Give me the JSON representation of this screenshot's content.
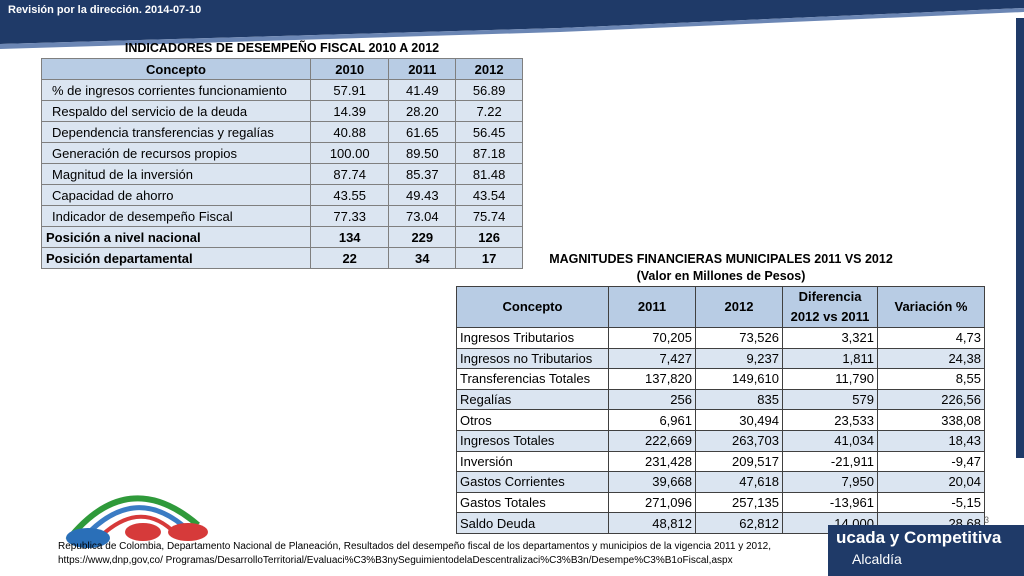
{
  "header": {
    "title": "Revisión por la dirección. 2014-07-10"
  },
  "table1": {
    "title": "INDICADORES DE DESEMPEÑO FISCAL 2010 A 2012",
    "headers": [
      "Concepto",
      "2010",
      "2011",
      "2012"
    ],
    "rows": [
      [
        "% de ingresos corrientes funcionamiento",
        "57.91",
        "41.49",
        "56.89"
      ],
      [
        "Respaldo del servicio de la deuda",
        "14.39",
        "28.20",
        "7.22"
      ],
      [
        "Dependencia transferencias y regalías",
        "40.88",
        "61.65",
        "56.45"
      ],
      [
        "Generación de recursos propios",
        "100.00",
        "89.50",
        "87.18"
      ],
      [
        "Magnitud de la inversión",
        "87.74",
        "85.37",
        "81.48"
      ],
      [
        "Capacidad de ahorro",
        "43.55",
        "49.43",
        "43.54"
      ],
      [
        "Indicador de desempeño Fiscal",
        "77.33",
        "73.04",
        "75.74"
      ]
    ],
    "summary_rows": [
      [
        "Posición a nivel nacional",
        "134",
        "229",
        "126"
      ],
      [
        "Posición departamental",
        "22",
        "34",
        "17"
      ]
    ]
  },
  "table2": {
    "title": "MAGNITUDES FINANCIERAS MUNICIPALES 2011 VS 2012",
    "subtitle": "(Valor en Millones de Pesos)",
    "headers": [
      "Concepto",
      "2011",
      "2012",
      "Diferencia",
      "2012 vs 2011",
      "Variación %"
    ],
    "rows": [
      [
        "Ingresos Tributarios",
        "70,205",
        "73,526",
        "3,321",
        "4,73"
      ],
      [
        "Ingresos no Tributarios",
        "7,427",
        "9,237",
        "1,811",
        "24,38"
      ],
      [
        "Transferencias Totales",
        "137,820",
        "149,610",
        "11,790",
        "8,55"
      ],
      [
        "Regalías",
        "256",
        "835",
        "579",
        "226,56"
      ],
      [
        "Otros",
        "6,961",
        "30,494",
        "23,533",
        "338,08"
      ],
      [
        "Ingresos Totales",
        "222,669",
        "263,703",
        "41,034",
        "18,43"
      ],
      [
        "Inversión",
        "231,428",
        "209,517",
        "-21,911",
        "-9,47"
      ],
      [
        "Gastos Corrientes",
        "39,668",
        "47,618",
        "7,950",
        "20,04"
      ],
      [
        "Gastos Totales",
        "271,096",
        "257,135",
        "-13,961",
        "-5,15"
      ],
      [
        "Saldo  Deuda",
        "48,812",
        "62,812",
        "14,000",
        "28,68"
      ]
    ]
  },
  "citation": {
    "line1": "Republica de Colombia, Departamento Nacional de Planeación, Resultados del desempeño fiscal de los departamentos y municipios de la vigencia 2011 y 2012,",
    "line2": "https://www,dnp,gov,co/ Programas/DesarrolloTerritorial/Evaluaci%C3%B3nySeguimientodelaDescentralizaci%C3%B3n/Desempe%C3%B1oFiscal,aspx"
  },
  "banner": {
    "slogan": "ucada y Competitiva",
    "alcaldia": "Alcaldía"
  },
  "page_number": "3",
  "colors": {
    "navy": "#1f3a68",
    "header_cell": "#b8cce4",
    "body_cell": "#dbe5f1"
  }
}
